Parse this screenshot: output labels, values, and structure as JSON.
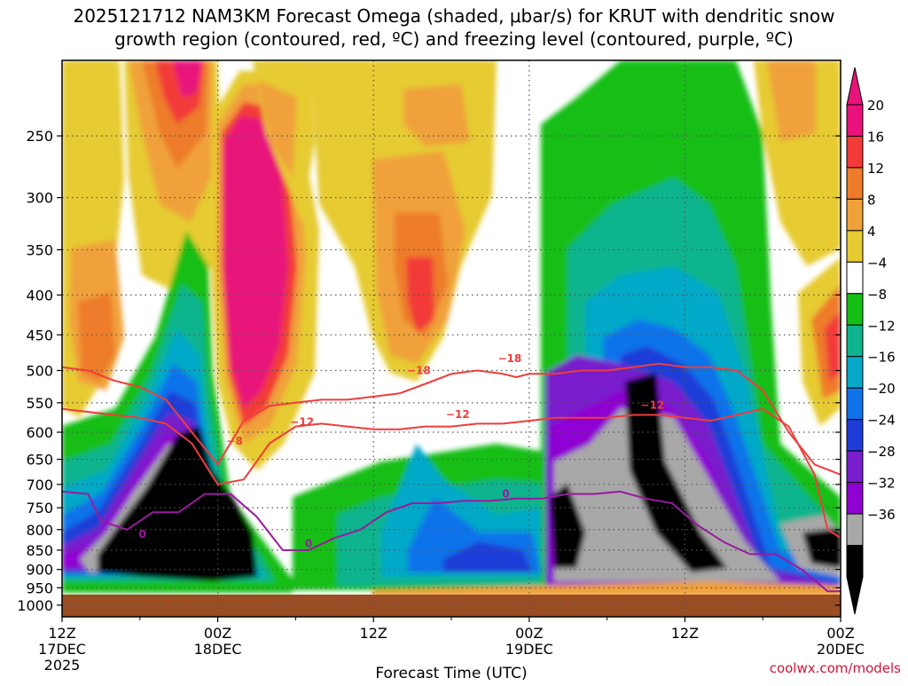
{
  "chart_data": {
    "type": "heatmap",
    "title_line1": "2025121712 NAM3KM Forecast Omega (shaded, μbar/s) for KRUT with dendritic snow",
    "title_line2": "growth region (contoured, red, ºC) and freezing level (contoured, purple, ºC)",
    "xlabel": "Forecast Time (UTC)",
    "credit": "coolwx.com/models",
    "y_ticks": [
      250,
      300,
      350,
      400,
      450,
      500,
      550,
      600,
      650,
      700,
      750,
      800,
      850,
      900,
      950,
      1000
    ],
    "x_ticks": [
      {
        "hours": 0,
        "line1": "12Z",
        "line2": "17DEC",
        "line3": "2025"
      },
      {
        "hours": 12,
        "line1": "00Z",
        "line2": "18DEC",
        "line3": ""
      },
      {
        "hours": 24,
        "line1": "12Z",
        "line2": "",
        "line3": ""
      },
      {
        "hours": 36,
        "line1": "00Z",
        "line2": "19DEC",
        "line3": ""
      },
      {
        "hours": 48,
        "line1": "12Z",
        "line2": "",
        "line3": ""
      },
      {
        "hours": 60,
        "line1": "00Z",
        "line2": "20DEC",
        "line3": ""
      }
    ],
    "x_range_hours": [
      0,
      60
    ],
    "y_range_mb": [
      200,
      1035
    ],
    "y_scale": "log",
    "grid": true,
    "colorbar": {
      "labels": [
        "20",
        "16",
        "12",
        "8",
        "4",
        "−4",
        "−8",
        "−12",
        "−16",
        "−20",
        "−24",
        "−28",
        "−32",
        "−36"
      ],
      "label_values": [
        20,
        16,
        12,
        8,
        4,
        -4,
        -8,
        -12,
        -16,
        -20,
        -24,
        -28,
        -32,
        -36
      ],
      "colors": [
        "#e8127a",
        "#f23a38",
        "#ee7b2a",
        "#f0a13a",
        "#e6cb32",
        "#ffffff",
        "#15be15",
        "#0fb48e",
        "#06a9c8",
        "#1173ea",
        "#1e3cd7",
        "#781ecc",
        "#8f00d2",
        "#a8a8a8",
        "#000000"
      ],
      "top_arrow": "#e8127a",
      "bottom_arrow": "#000000"
    },
    "terrain_color": "#9b4d23",
    "contour_labels": {
      "dgz_upper": "−18",
      "dgz_lower": "−12",
      "freezing_level": "0",
      "dgz_upper_early": "−8"
    },
    "series": [
      {
        "name": "−18",
        "color": "#f03c3c",
        "x": [
          0,
          2,
          4,
          6,
          8,
          10,
          12,
          14,
          16,
          18,
          20,
          22,
          24,
          26,
          28,
          30,
          32,
          34,
          35,
          36,
          38,
          40,
          42,
          44,
          46,
          48,
          50,
          52,
          54,
          56,
          58,
          60
        ],
        "y": [
          495,
          500,
          515,
          525,
          545,
          600,
          660,
          580,
          555,
          550,
          545,
          545,
          540,
          535,
          520,
          505,
          500,
          505,
          510,
          505,
          505,
          500,
          500,
          495,
          490,
          495,
          495,
          500,
          530,
          600,
          660,
          680
        ]
      },
      {
        "name": "−12",
        "color": "#f03c3c",
        "x": [
          0,
          2,
          4,
          6,
          8,
          10,
          12,
          14,
          16,
          18,
          20,
          22,
          24,
          26,
          28,
          30,
          32,
          34,
          36,
          38,
          40,
          42,
          44,
          46,
          48,
          50,
          52,
          54,
          56,
          58,
          59,
          60
        ],
        "y": [
          560,
          565,
          570,
          575,
          585,
          620,
          700,
          690,
          620,
          590,
          585,
          590,
          595,
          595,
          590,
          590,
          585,
          585,
          580,
          575,
          575,
          575,
          570,
          570,
          575,
          580,
          570,
          560,
          590,
          680,
          800,
          820
        ]
      },
      {
        "name": "0",
        "color": "#9a1aa0",
        "x": [
          0,
          2,
          3,
          5,
          7,
          9,
          11,
          13,
          15,
          17,
          19,
          21,
          23,
          25,
          27,
          29,
          31,
          33,
          35,
          37,
          39,
          41,
          43,
          45,
          47,
          49,
          51,
          53,
          55,
          57,
          59,
          60
        ],
        "y": [
          715,
          720,
          780,
          800,
          760,
          760,
          720,
          720,
          770,
          850,
          850,
          820,
          800,
          760,
          740,
          740,
          735,
          735,
          730,
          730,
          720,
          720,
          715,
          730,
          740,
          790,
          830,
          860,
          860,
          900,
          960,
          960
        ]
      }
    ]
  }
}
